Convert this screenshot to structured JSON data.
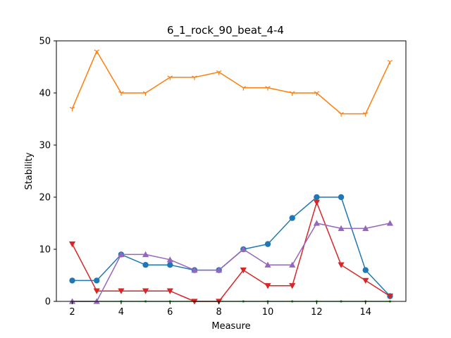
{
  "chart_data": {
    "type": "line",
    "title": "6_1_rock_90_beat_4-4",
    "xlabel": "Measure",
    "ylabel": "Stability",
    "xlim": [
      1.35,
      15.65
    ],
    "ylim": [
      0,
      50
    ],
    "xticks": [
      2,
      4,
      6,
      8,
      10,
      12,
      14
    ],
    "yticks": [
      0,
      10,
      20,
      30,
      40,
      50
    ],
    "grid": false,
    "x": [
      2,
      3,
      4,
      5,
      6,
      7,
      8,
      9,
      10,
      11,
      12,
      13,
      14,
      15
    ],
    "series": [
      {
        "color": "#1f77b4",
        "marker": "circle",
        "values": [
          4,
          4,
          9,
          7,
          7,
          6,
          6,
          10,
          11,
          16,
          20,
          20,
          6,
          1
        ]
      },
      {
        "color": "#ff7f0e",
        "marker": "tri_down",
        "values": [
          37,
          48,
          40,
          40,
          43,
          43,
          44,
          41,
          41,
          40,
          40,
          36,
          36,
          46
        ]
      },
      {
        "color": "#2ca02c",
        "marker": "point",
        "values": [
          0,
          0,
          0,
          0,
          0,
          0,
          0,
          0,
          0,
          0,
          0,
          0,
          0,
          0
        ]
      },
      {
        "color": "#d62728",
        "marker": "triangle_down",
        "values": [
          11,
          2,
          2,
          2,
          2,
          0,
          0,
          6,
          3,
          3,
          19,
          7,
          4,
          1
        ]
      },
      {
        "color": "#9467bd",
        "marker": "triangle_up",
        "values": [
          0,
          0,
          9,
          9,
          8,
          6,
          6,
          10,
          7,
          7,
          15,
          14,
          14,
          15
        ]
      }
    ]
  }
}
